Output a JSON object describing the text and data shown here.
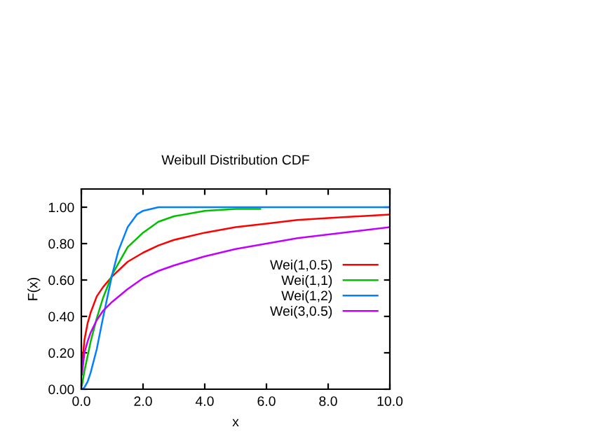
{
  "chart_data": {
    "type": "line",
    "title": "Weibull Distribution CDF",
    "xlabel": "x",
    "ylabel": "F(x)",
    "xlim": [
      0,
      10
    ],
    "ylim": [
      0,
      1.1
    ],
    "xticks": [
      {
        "value": 0,
        "label": "0.0"
      },
      {
        "value": 2,
        "label": "2.0"
      },
      {
        "value": 4,
        "label": "4.0"
      },
      {
        "value": 6,
        "label": "6.0"
      },
      {
        "value": 8,
        "label": "8.0"
      },
      {
        "value": 10,
        "label": "10.0"
      }
    ],
    "yticks": [
      {
        "value": 0,
        "label": "0.00"
      },
      {
        "value": 0.2,
        "label": "0.20"
      },
      {
        "value": 0.4,
        "label": "0.40"
      },
      {
        "value": 0.6,
        "label": "0.60"
      },
      {
        "value": 0.8,
        "label": "0.80"
      },
      {
        "value": 1.0,
        "label": "1.00"
      }
    ],
    "grid": false,
    "legend": "right",
    "marker": "none",
    "line_style": "solid",
    "series": [
      {
        "name": "Wei(1,0.5)",
        "color": "#ff0000",
        "x": [
          0.02,
          0.1,
          0.2,
          0.3,
          0.5,
          0.7,
          1.0,
          1.5,
          2.0,
          2.5,
          3,
          4,
          5,
          6,
          7,
          8,
          9,
          10
        ],
        "values": [
          0.13,
          0.27,
          0.36,
          0.42,
          0.51,
          0.56,
          0.62,
          0.7,
          0.75,
          0.79,
          0.82,
          0.86,
          0.89,
          0.91,
          0.93,
          0.94,
          0.95,
          0.96
        ]
      },
      {
        "name": "Wei(1,1)",
        "color": "#00c000",
        "x": [
          0.02,
          0.1,
          0.2,
          0.3,
          0.5,
          0.7,
          1.0,
          1.5,
          2.0,
          2.5,
          3,
          4,
          5,
          5.8
        ],
        "values": [
          0.02,
          0.1,
          0.18,
          0.26,
          0.39,
          0.5,
          0.63,
          0.78,
          0.86,
          0.92,
          0.95,
          0.98,
          0.99,
          0.99
        ]
      },
      {
        "name": "Wei(1,2)",
        "color": "#0080ff",
        "x": [
          0.02,
          0.1,
          0.2,
          0.3,
          0.5,
          0.7,
          1.0,
          1.2,
          1.5,
          1.8,
          2.0,
          2.5,
          4,
          6,
          8,
          10
        ],
        "values": [
          0.0,
          0.01,
          0.04,
          0.09,
          0.22,
          0.39,
          0.63,
          0.76,
          0.89,
          0.96,
          0.98,
          1.0,
          1.0,
          1.0,
          1.0,
          1.0
        ]
      },
      {
        "name": "Wei(3,0.5)",
        "color": "#c000ff",
        "x": [
          0.02,
          0.1,
          0.2,
          0.3,
          0.5,
          0.7,
          1.0,
          1.5,
          2.0,
          2.5,
          3,
          4,
          5,
          6,
          7,
          8,
          9,
          10
        ],
        "values": [
          0.08,
          0.2,
          0.26,
          0.31,
          0.38,
          0.43,
          0.48,
          0.55,
          0.61,
          0.65,
          0.68,
          0.73,
          0.77,
          0.8,
          0.83,
          0.85,
          0.87,
          0.89
        ]
      }
    ]
  }
}
